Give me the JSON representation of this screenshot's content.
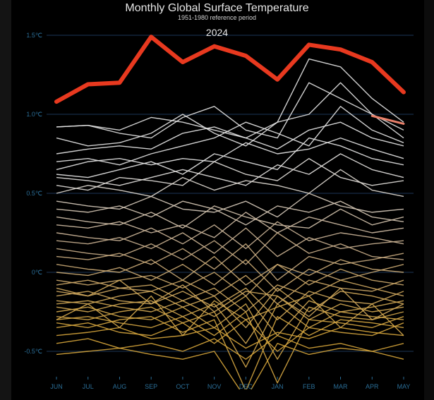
{
  "chart_data": {
    "type": "line",
    "title": "Monthly Global Surface Temperature",
    "subtitle": "1951-1980 reference period",
    "highlight_label": "2024",
    "categories": [
      "JUN",
      "JUL",
      "AUG",
      "SEP",
      "OCT",
      "NOV",
      "DEC",
      "JAN",
      "FEB",
      "MAR",
      "APR",
      "MAY"
    ],
    "yticks": [
      1.5,
      1.0,
      0.5,
      0,
      -0.5
    ],
    "ytick_labels": [
      "1.5℃",
      "1.0℃",
      "0.5℃",
      "0℃",
      "-0.5℃"
    ],
    "ylim": [
      -0.62,
      1.55
    ],
    "grid": true,
    "colors": {
      "highlight": "#e8391f",
      "previous": "#e8806a",
      "cold": "#d6a53a",
      "mid": "#c8ad8a",
      "warm": "#e6e6e6",
      "axis_text": "#2a6d96",
      "grid": "#13243a"
    },
    "highlight_series": {
      "values": [
        1.08,
        1.19,
        1.2,
        1.49,
        1.33,
        1.43,
        1.37,
        1.22,
        1.44,
        1.41,
        1.33,
        1.14
      ]
    },
    "previous_series": {
      "values": [
        null,
        null,
        null,
        null,
        null,
        null,
        null,
        null,
        null,
        null,
        0.99,
        0.94
      ]
    },
    "series": [
      [
        0.92,
        0.93,
        0.9,
        0.98,
        0.95,
        0.9,
        0.85,
        0.95,
        1.35,
        1.3,
        1.1,
        0.95
      ],
      [
        0.92,
        0.93,
        0.88,
        0.85,
        0.98,
        1.05,
        0.9,
        0.85,
        1.2,
        1.1,
        1.0,
        0.9
      ],
      [
        0.85,
        0.8,
        0.82,
        0.88,
        1.0,
        0.88,
        0.8,
        0.95,
        1.0,
        1.2,
        1.0,
        0.85
      ],
      [
        0.75,
        0.78,
        0.8,
        0.78,
        0.88,
        0.92,
        0.85,
        0.78,
        0.9,
        0.95,
        0.85,
        0.8
      ],
      [
        0.7,
        0.72,
        0.68,
        0.75,
        0.8,
        0.85,
        0.95,
        0.88,
        0.8,
        1.05,
        0.9,
        0.82
      ],
      [
        0.65,
        0.7,
        0.72,
        0.68,
        0.72,
        0.7,
        0.82,
        0.75,
        0.78,
        0.85,
        0.78,
        0.72
      ],
      [
        0.62,
        0.6,
        0.65,
        0.7,
        0.62,
        0.75,
        0.7,
        0.65,
        0.85,
        0.8,
        0.72,
        0.68
      ],
      [
        0.6,
        0.58,
        0.55,
        0.6,
        0.65,
        0.6,
        0.55,
        0.68,
        0.62,
        0.75,
        0.65,
        0.6
      ],
      [
        0.55,
        0.52,
        0.6,
        0.58,
        0.55,
        0.7,
        0.62,
        0.58,
        0.72,
        0.6,
        0.55,
        0.58
      ],
      [
        0.5,
        0.55,
        0.52,
        0.48,
        0.6,
        0.52,
        0.58,
        0.55,
        0.5,
        0.65,
        0.52,
        0.48
      ],
      [
        0.45,
        0.42,
        0.4,
        0.48,
        0.4,
        0.38,
        0.45,
        0.35,
        0.5,
        0.42,
        0.38,
        0.4
      ],
      [
        0.4,
        0.38,
        0.42,
        0.35,
        0.45,
        0.4,
        0.3,
        0.42,
        0.38,
        0.45,
        0.35,
        0.32
      ],
      [
        0.35,
        0.32,
        0.3,
        0.38,
        0.28,
        0.42,
        0.35,
        0.3,
        0.28,
        0.4,
        0.3,
        0.35
      ],
      [
        0.3,
        0.28,
        0.32,
        0.25,
        0.3,
        0.22,
        0.38,
        0.25,
        0.35,
        0.3,
        0.25,
        0.28
      ],
      [
        0.25,
        0.22,
        0.2,
        0.28,
        0.18,
        0.3,
        0.15,
        0.32,
        0.2,
        0.25,
        0.22,
        0.18
      ],
      [
        0.2,
        0.18,
        0.22,
        0.15,
        0.25,
        0.12,
        0.28,
        0.1,
        0.22,
        0.15,
        0.18,
        0.2
      ],
      [
        0.15,
        0.12,
        0.1,
        0.18,
        0.08,
        0.2,
        0.05,
        0.25,
        0.12,
        0.18,
        0.1,
        0.08
      ],
      [
        0.1,
        0.08,
        0.12,
        0.05,
        0.15,
        0.02,
        0.18,
        -0.05,
        0.1,
        0.05,
        0.08,
        0.12
      ],
      [
        0.05,
        0.02,
        0.0,
        0.08,
        -0.05,
        0.1,
        -0.08,
        0.05,
        -0.02,
        0.08,
        0.02,
        0.0
      ],
      [
        0.0,
        -0.02,
        0.03,
        -0.05,
        0.05,
        -0.08,
        0.08,
        -0.12,
        0.02,
        -0.05,
        0.0,
        0.05
      ],
      [
        -0.05,
        -0.08,
        -0.05,
        -0.02,
        -0.1,
        0.0,
        -0.15,
        0.05,
        -0.08,
        0.02,
        -0.05,
        -0.08
      ],
      [
        -0.08,
        -0.05,
        -0.1,
        -0.12,
        -0.05,
        -0.15,
        -0.02,
        -0.2,
        -0.05,
        -0.1,
        -0.12,
        -0.05
      ],
      [
        -0.12,
        -0.15,
        -0.1,
        -0.08,
        -0.18,
        -0.1,
        -0.25,
        -0.08,
        -0.15,
        -0.05,
        -0.1,
        -0.15
      ],
      [
        -0.15,
        -0.12,
        -0.18,
        -0.2,
        -0.12,
        -0.22,
        -0.1,
        -0.3,
        -0.12,
        -0.18,
        -0.2,
        -0.12
      ],
      [
        -0.18,
        -0.2,
        -0.15,
        -0.12,
        -0.22,
        -0.15,
        -0.35,
        -0.1,
        -0.25,
        -0.12,
        -0.15,
        -0.2
      ],
      [
        -0.2,
        -0.18,
        -0.22,
        -0.25,
        -0.18,
        -0.28,
        -0.15,
        -0.4,
        -0.18,
        -0.25,
        -0.22,
        -0.18
      ],
      [
        -0.22,
        -0.25,
        -0.2,
        -0.18,
        -0.28,
        -0.2,
        -0.45,
        -0.15,
        -0.3,
        -0.2,
        -0.25,
        -0.22
      ],
      [
        -0.25,
        -0.22,
        -0.28,
        -0.3,
        -0.22,
        -0.35,
        -0.2,
        -0.55,
        -0.22,
        -0.28,
        -0.3,
        -0.25
      ],
      [
        -0.28,
        -0.3,
        -0.25,
        -0.22,
        -0.32,
        -0.25,
        -0.6,
        -0.2,
        -0.35,
        -0.25,
        -0.28,
        -0.3
      ],
      [
        -0.3,
        -0.28,
        -0.32,
        -0.35,
        -0.28,
        -0.4,
        -0.25,
        -0.7,
        -0.3,
        -0.32,
        -0.35,
        -0.28
      ],
      [
        -0.32,
        -0.35,
        -0.3,
        -0.28,
        -0.38,
        -0.3,
        -0.75,
        -0.28,
        -0.4,
        -0.3,
        -0.32,
        -0.35
      ],
      [
        -0.35,
        -0.32,
        -0.38,
        -0.4,
        -0.32,
        -0.45,
        -0.3,
        -0.5,
        -0.35,
        -0.38,
        -0.4,
        -0.32
      ],
      [
        -0.4,
        -0.38,
        -0.35,
        -0.42,
        -0.4,
        -0.35,
        -0.48,
        -0.38,
        -0.42,
        -0.35,
        -0.38,
        -0.4
      ],
      [
        -0.45,
        -0.42,
        -0.48,
        -0.45,
        -0.5,
        -0.42,
        -0.55,
        -0.4,
        -0.48,
        -0.45,
        -0.5,
        -0.45
      ],
      [
        -0.52,
        -0.5,
        -0.48,
        -0.52,
        -0.55,
        -0.5,
        -0.8,
        -0.45,
        -0.52,
        -0.48,
        -0.5,
        -0.55
      ],
      [
        -0.1,
        -0.15,
        -0.05,
        -0.2,
        -0.08,
        -0.25,
        -0.12,
        -0.15,
        -0.28,
        -0.1,
        -0.3,
        -0.2
      ],
      [
        -0.3,
        -0.2,
        -0.35,
        -0.15,
        -0.4,
        -0.18,
        -0.3,
        -0.22,
        -0.15,
        -0.35,
        -0.2,
        -0.4
      ]
    ]
  }
}
